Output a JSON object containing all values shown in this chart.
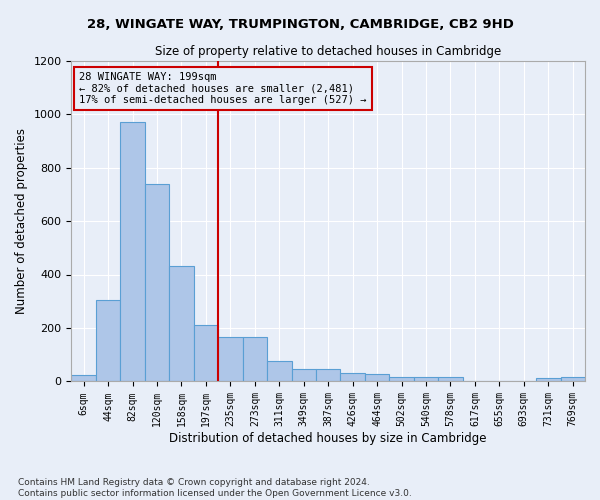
{
  "title": "28, WINGATE WAY, TRUMPINGTON, CAMBRIDGE, CB2 9HD",
  "subtitle": "Size of property relative to detached houses in Cambridge",
  "xlabel": "Distribution of detached houses by size in Cambridge",
  "ylabel": "Number of detached properties",
  "footnote1": "Contains HM Land Registry data © Crown copyright and database right 2024.",
  "footnote2": "Contains public sector information licensed under the Open Government Licence v3.0.",
  "annotation_line1": "28 WINGATE WAY: 199sqm",
  "annotation_line2": "← 82% of detached houses are smaller (2,481)",
  "annotation_line3": "17% of semi-detached houses are larger (527) →",
  "bar_categories": [
    "6sqm",
    "44sqm",
    "82sqm",
    "120sqm",
    "158sqm",
    "197sqm",
    "235sqm",
    "273sqm",
    "311sqm",
    "349sqm",
    "387sqm",
    "426sqm",
    "464sqm",
    "502sqm",
    "540sqm",
    "578sqm",
    "617sqm",
    "655sqm",
    "693sqm",
    "731sqm",
    "769sqm"
  ],
  "bar_values": [
    25,
    305,
    970,
    740,
    430,
    210,
    165,
    165,
    75,
    48,
    48,
    30,
    28,
    15,
    15,
    15,
    0,
    0,
    0,
    12,
    15
  ],
  "bar_color": "#aec6e8",
  "bar_edge_color": "#5a9fd4",
  "vline_x": 5.5,
  "vline_color": "#cc0000",
  "annotation_box_color": "#cc0000",
  "background_color": "#e8eef8",
  "ylim": [
    0,
    1200
  ],
  "yticks": [
    0,
    200,
    400,
    600,
    800,
    1000,
    1200
  ]
}
